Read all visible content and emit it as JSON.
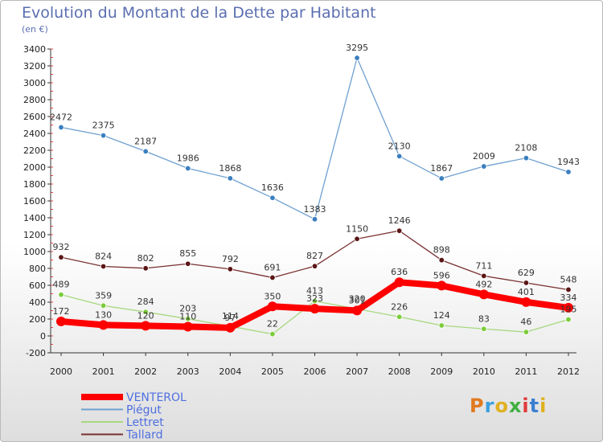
{
  "chart_data": {
    "type": "line",
    "title": "Evolution du Montant de la Dette par Habitant",
    "subtitle": "(en €)",
    "xlabel": "",
    "ylabel": "",
    "x": [
      "2000",
      "2001",
      "2002",
      "2003",
      "2004",
      "2005",
      "2006",
      "2007",
      "2008",
      "2009",
      "2010",
      "2011",
      "2012"
    ],
    "ylim": [
      -200,
      3400
    ],
    "yticks": [
      -200,
      0,
      200,
      400,
      600,
      800,
      1000,
      1200,
      1400,
      1600,
      1800,
      2000,
      2200,
      2400,
      2600,
      2800,
      3000,
      3200,
      3400
    ],
    "legend_placement": "bottom-left",
    "grid": false,
    "series": [
      {
        "name": "VENTEROL",
        "color": "#ff0000",
        "point_color": "#ff0000",
        "values": [
          172,
          130,
          120,
          110,
          97,
          350,
          323,
          301,
          636,
          596,
          492,
          401,
          334
        ],
        "labels": [
          "172",
          "130",
          "120",
          "110",
          "97",
          "350",
          "323",
          "301",
          "636",
          "596",
          "492",
          "401",
          "334"
        ]
      },
      {
        "name": "Piégut",
        "color": "#6fa0d0",
        "point_color": "#3a7fc0",
        "values": [
          2472,
          2375,
          2187,
          1986,
          1868,
          1636,
          1383,
          3295,
          2130,
          1867,
          2009,
          2108,
          1943
        ],
        "labels": [
          "2472",
          "2375",
          "2187",
          "1986",
          "1868",
          "1636",
          "1383",
          "3295",
          "2130",
          "1867",
          "2009",
          "2108",
          "1943"
        ]
      },
      {
        "name": "Lettret",
        "color": "#a8d880",
        "point_color": "#7ccc3a",
        "values": [
          489,
          359,
          284,
          203,
          114,
          22,
          413,
          320,
          226,
          124,
          83,
          46,
          195
        ],
        "labels": [
          "489",
          "359",
          "284",
          "203",
          "114",
          "22",
          "413",
          "320",
          "226",
          "124",
          "83",
          "46",
          "195"
        ]
      },
      {
        "name": "Tallard",
        "color": "#7a3030",
        "point_color": "#5a1515",
        "values": [
          932,
          824,
          802,
          855,
          792,
          691,
          827,
          1150,
          1246,
          898,
          711,
          629,
          548
        ],
        "labels": [
          "932",
          "824",
          "802",
          "855",
          "792",
          "691",
          "827",
          "1150",
          "1246",
          "898",
          "711",
          "629",
          "548"
        ]
      }
    ]
  },
  "logo": {
    "text": "Proxiti"
  }
}
